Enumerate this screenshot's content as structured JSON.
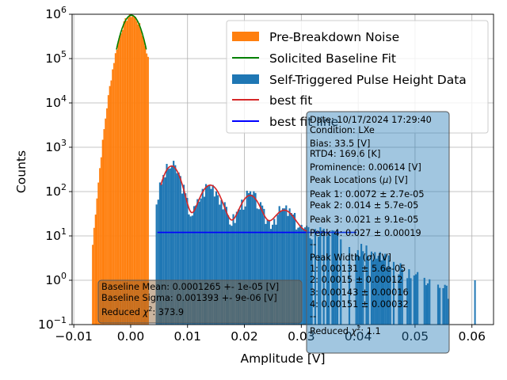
{
  "chart_data": {
    "type": "bar",
    "xlabel": "Amplitude [V]",
    "ylabel": "Counts",
    "xlim": [
      -0.0103,
      0.0638
    ],
    "ylim_log10": [
      -1,
      6
    ],
    "yscale": "log",
    "grid": true,
    "legend_placement": "top-right",
    "x_ticks": [
      -0.01,
      0.0,
      0.01,
      0.02,
      0.03,
      0.04,
      0.05,
      0.06
    ],
    "x_tick_labels": [
      "−0.01",
      "0.00",
      "0.01",
      "0.02",
      "0.03",
      "0.04",
      "0.05",
      "0.06"
    ],
    "y_ticks_log10": [
      -1,
      0,
      1,
      2,
      3,
      4,
      5,
      6
    ],
    "y_tick_labels": [
      "10",
      "10",
      "10",
      "10",
      "10",
      "10",
      "10",
      "10"
    ],
    "y_tick_exponents": [
      "−1",
      "0",
      "1",
      "2",
      "3",
      "4",
      "5",
      "6"
    ],
    "legend": [
      {
        "label": "Pre-Breakdown Noise",
        "kind": "patch",
        "color": "#ff7f0e"
      },
      {
        "label": "Solicited Baseline Fit",
        "kind": "line",
        "color": "#008000"
      },
      {
        "label": "Self-Triggered Pulse Height Data",
        "kind": "patch",
        "color": "#1f77b4"
      },
      {
        "label": "best fit",
        "kind": "line",
        "color": "#d62728"
      },
      {
        "label": "best fit line",
        "kind": "line",
        "color": "#0000ff"
      }
    ],
    "noise_histogram": {
      "color": "#ff7f0e",
      "mean": 0.0001265,
      "sigma": 0.001393,
      "peak_counts": 950000,
      "x_range": [
        -0.0068,
        0.0031
      ]
    },
    "baseline_fit": {
      "color": "#008000",
      "mean": 0.0001265,
      "sigma": 0.001393,
      "peak_counts": 950000,
      "x_range": [
        -0.0025,
        0.0028
      ]
    },
    "pulse_histogram": {
      "color": "#1f77b4",
      "x_range": [
        0.0044,
        0.061
      ],
      "peaks": [
        {
          "mu": 0.0072,
          "sigma": 0.00131,
          "amp": 365
        },
        {
          "mu": 0.014,
          "sigma": 0.0015,
          "amp": 128
        },
        {
          "mu": 0.021,
          "sigma": 0.00143,
          "amp": 70
        },
        {
          "mu": 0.027,
          "sigma": 0.00151,
          "amp": 26
        }
      ],
      "background": 12,
      "isolated_bar": {
        "x": 0.0604,
        "counts": 1
      }
    },
    "best_fit": {
      "color": "#d62728",
      "x_range": [
        0.0053,
        0.0311
      ]
    },
    "best_fit_line": {
      "color": "#0000ff",
      "x_range": [
        0.0047,
        0.0397
      ],
      "value": 12
    },
    "baseline_box": {
      "lines": [
        "Baseline Mean: 0.0001265 +- 1e-05 [V]",
        "Baseline Sigma: 0.001393 +- 9e-06 [V]"
      ],
      "reduced_prefix": "Reduced ",
      "reduced_value": ": 373.9"
    },
    "fit_box": {
      "lines_top": [
        "Date: 10/17/2024 17:29:40",
        "Condition: LXe",
        "Bias: 33.5 [V]",
        "RTD4: 169.6 [K]",
        "Prominence: 0.00614 [V]",
        "Peak Locations (",
        "Peak 1: 0.0072 ± 2.7e-05",
        "Peak 2: 0.014 ± 5.7e-05",
        "Peak 3: 0.021 ± 9.1e-05",
        "Peak 4: 0.027 ± 0.00019",
        "--",
        "Peak Width (",
        "1: 0.00131 ± 5.6e-05",
        "2: 0.0015 ± 0.00012",
        "3: 0.00143 ± 0.00016",
        "4: 0.00151 ± 0.00032",
        "--",
        "Reduced "
      ],
      "peak_locations_suffix": ") [V]",
      "peak_width_suffix": ") [V]",
      "mu_symbol": "μ",
      "sigma_symbol": "σ",
      "reduced_value": ": 1.1"
    }
  }
}
